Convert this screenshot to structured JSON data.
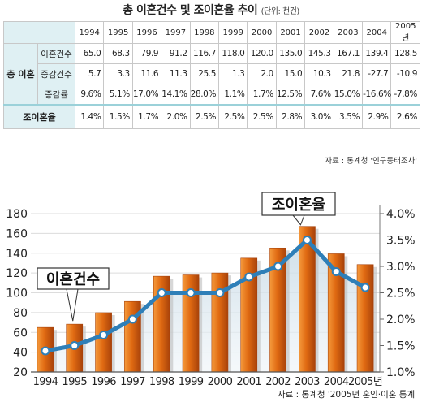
{
  "title": "총 이혼건수 및 조이혼율 추이",
  "unit_note": "(단위: 천건)",
  "table": {
    "years": [
      "1994",
      "1995",
      "1996",
      "1997",
      "1998",
      "1999",
      "2000",
      "2001",
      "2002",
      "2003",
      "2004",
      "2005년"
    ],
    "group_label": "총 이혼",
    "rows": [
      {
        "label": "이혼건수",
        "values": [
          "65.0",
          "68.3",
          "79.9",
          "91.2",
          "116.7",
          "118.0",
          "120.0",
          "135.0",
          "145.3",
          "167.1",
          "139.4",
          "128.5"
        ]
      },
      {
        "label": "증감건수",
        "values": [
          "5.7",
          "3.3",
          "11.6",
          "11.3",
          "25.5",
          "1.3",
          "2.0",
          "15.0",
          "10.3",
          "21.8",
          "-27.7",
          "-10.9"
        ]
      },
      {
        "label": "증감률",
        "values": [
          "9.6%",
          "5.1%",
          "17.0%",
          "14.1%",
          "28.0%",
          "1.1%",
          "1.7%",
          "12.5%",
          "7.6%",
          "15.0%",
          "-16.6%",
          "-7.8%"
        ]
      }
    ],
    "rate_row": {
      "label": "조이혼율",
      "values": [
        "1.4%",
        "1.5%",
        "1.7%",
        "2.0%",
        "2.5%",
        "2.5%",
        "2.5%",
        "2.8%",
        "3.0%",
        "3.5%",
        "2.9%",
        "2.6%"
      ]
    }
  },
  "source_top": "자료 : 통계청 '인구동태조사'",
  "source_bottom": "자료 : 통계청 '2005년 혼인·이혼 통계'",
  "chart_data": {
    "type": "bar",
    "categories": [
      "1994",
      "1995",
      "1996",
      "1997",
      "1998",
      "1999",
      "2000",
      "2001",
      "2002",
      "2003",
      "2004",
      "2005년"
    ],
    "series": [
      {
        "name": "이혼건수",
        "type": "bar",
        "axis": "left",
        "values": [
          65.0,
          68.3,
          79.9,
          91.2,
          116.7,
          118.0,
          120.0,
          135.0,
          145.3,
          167.1,
          139.4,
          128.5
        ]
      },
      {
        "name": "조이혼율",
        "type": "line",
        "axis": "right",
        "values": [
          1.4,
          1.5,
          1.7,
          2.0,
          2.5,
          2.5,
          2.5,
          2.8,
          3.0,
          3.5,
          2.9,
          2.6
        ]
      }
    ],
    "y_left": {
      "min": 20,
      "max": 180,
      "ticks": [
        "180",
        "160",
        "140",
        "120",
        "100",
        "80",
        "60",
        "40",
        "20"
      ]
    },
    "y_right": {
      "min": 1.0,
      "max": 4.0,
      "ticks": [
        "4.0%",
        "3.5%",
        "3.0%",
        "2.5%",
        "2.0%",
        "1.5%",
        "1.0%"
      ]
    },
    "colors": {
      "bar": "#e06a12",
      "bar_dark": "#a8420a",
      "line": "#2e7fb8",
      "marker": "#ffffff"
    }
  }
}
